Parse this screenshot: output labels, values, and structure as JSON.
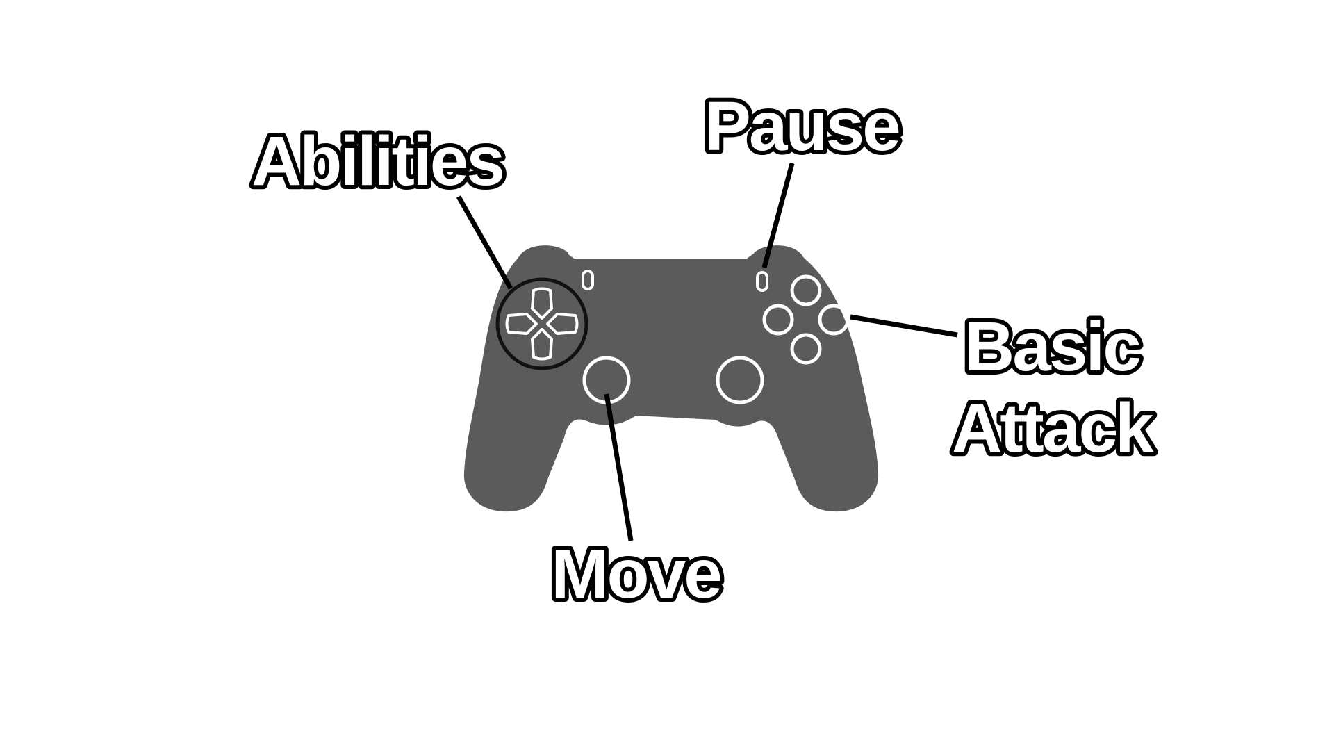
{
  "colors": {
    "background": "#ffffff",
    "controller_body": "#5b5b5b",
    "button_outline": "#ffffff",
    "label_fill": "#ffffff",
    "label_stroke": "#000000",
    "leader_line": "#000000"
  },
  "labels": {
    "abilities": "Abilities",
    "pause": "Pause",
    "basic_attack_line1": "Basic",
    "basic_attack_line2": "Attack",
    "move": "Move"
  },
  "icons": {
    "controller": "gamepad-icon",
    "dpad": "dpad-icon",
    "face_buttons": "face-buttons-icon",
    "left_stick": "left-stick-icon",
    "right_stick": "right-stick-icon"
  }
}
